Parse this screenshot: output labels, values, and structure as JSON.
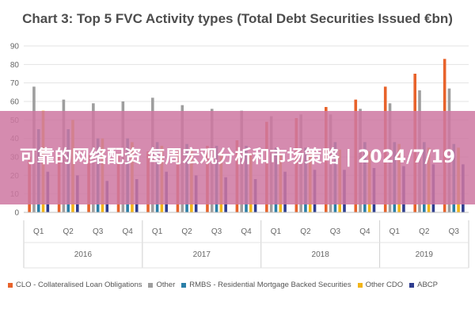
{
  "chart_data": {
    "type": "bar",
    "title": "Chart 3: Top 5 FVC Activity types (Total Debt Securities Issued €bn)",
    "xlabel": "",
    "ylabel": "",
    "ylim": [
      0,
      90
    ],
    "yticks": [
      0,
      10,
      20,
      30,
      40,
      50,
      60,
      70,
      80,
      90
    ],
    "grid": true,
    "legend_position": "bottom",
    "categories": [
      "Q1",
      "Q2",
      "Q3",
      "Q4",
      "Q1",
      "Q2",
      "Q3",
      "Q4",
      "Q1",
      "Q2",
      "Q3",
      "Q4",
      "Q1",
      "Q2",
      "Q3"
    ],
    "year_groups": [
      {
        "label": "2016",
        "count": 4
      },
      {
        "label": "2017",
        "count": 4
      },
      {
        "label": "2018",
        "count": 4
      },
      {
        "label": "2019",
        "count": 3
      }
    ],
    "series": [
      {
        "name": "CLO - Collateralised Loan Obligations",
        "color": "#e8632b",
        "values": [
          30,
          31,
          31,
          32,
          33,
          34,
          36,
          39,
          49,
          51,
          57,
          61,
          68,
          75,
          83
        ]
      },
      {
        "name": "Other",
        "color": "#9e9e9e",
        "values": [
          68,
          61,
          59,
          60,
          62,
          58,
          56,
          55,
          52,
          53,
          53,
          56,
          59,
          66,
          67
        ]
      },
      {
        "name": "RMBS - Residential Mortgage Backed Securities",
        "color": "#2a7fa8",
        "values": [
          45,
          45,
          40,
          40,
          38,
          37,
          36,
          36,
          35,
          35,
          38,
          38,
          38,
          38,
          37
        ]
      },
      {
        "name": "Other CDO",
        "color": "#f2b418",
        "values": [
          55,
          50,
          40,
          38,
          36,
          34,
          33,
          32,
          31,
          33,
          34,
          33,
          37,
          35,
          35
        ]
      },
      {
        "name": "ABCP",
        "color": "#2e3d8f",
        "values": [
          22,
          20,
          17,
          18,
          22,
          20,
          19,
          18,
          22,
          23,
          23,
          24,
          25,
          26,
          26
        ]
      }
    ]
  },
  "overlay": {
    "text": "可靠的网络配资 每周宏观分析和市场策略 | 2024/7/19"
  }
}
